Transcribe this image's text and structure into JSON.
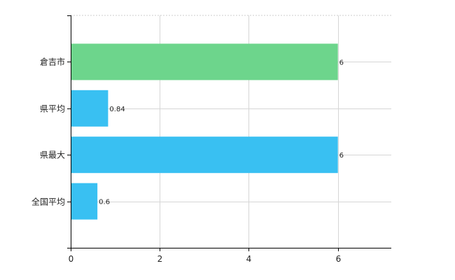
{
  "chart_data": {
    "type": "bar",
    "orientation": "horizontal",
    "categories": [
      "倉吉市",
      "県平均",
      "県最大",
      "全国平均"
    ],
    "values": [
      6,
      0.84,
      6,
      0.6
    ],
    "data_labels": [
      "6",
      "0.84",
      "6",
      "0.6"
    ],
    "colors": [
      "#6dd58c",
      "#39c0f2",
      "#39c0f2",
      "#39c0f2"
    ],
    "title": "",
    "xlabel": "",
    "ylabel": "",
    "xlim": [
      0,
      7.2
    ],
    "xticks": [
      0,
      2,
      4,
      6
    ],
    "grid": true,
    "legend": "none"
  }
}
